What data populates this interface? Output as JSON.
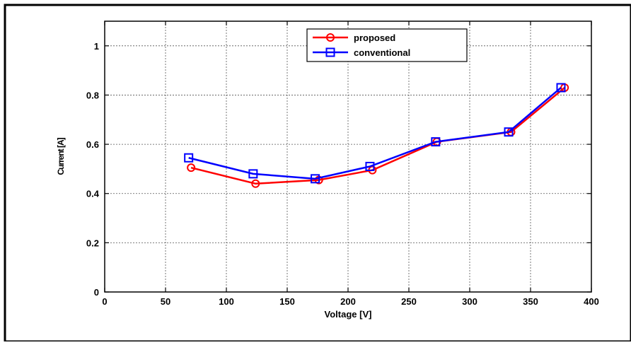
{
  "chart_data": {
    "type": "line",
    "title": "",
    "xlabel": "Voltage [V]",
    "ylabel": "Current [A]",
    "xlim": [
      0,
      400
    ],
    "ylim": [
      0,
      1.1
    ],
    "xticks": [
      0,
      50,
      100,
      150,
      200,
      250,
      300,
      350,
      400
    ],
    "yticks": [
      0,
      0.2,
      0.4,
      0.6,
      0.8,
      1
    ],
    "xtick_labels": [
      "0",
      "50",
      "100",
      "150",
      "200",
      "250",
      "300",
      "350",
      "400"
    ],
    "ytick_labels": [
      "0",
      "0.2",
      "0.4",
      "0.6",
      "0.8",
      "1"
    ],
    "grid": true,
    "legend_position": "top-right",
    "series": [
      {
        "name": "proposed",
        "color": "#ff0000",
        "marker": "circle",
        "x": [
          71,
          124,
          176,
          220,
          273,
          334,
          378
        ],
        "y": [
          0.505,
          0.44,
          0.455,
          0.495,
          0.61,
          0.65,
          0.83
        ]
      },
      {
        "name": "conventional",
        "color": "#0000ff",
        "marker": "square",
        "x": [
          69,
          122,
          173,
          218,
          272,
          332,
          375
        ],
        "y": [
          0.545,
          0.48,
          0.46,
          0.51,
          0.61,
          0.65,
          0.83
        ]
      }
    ]
  }
}
